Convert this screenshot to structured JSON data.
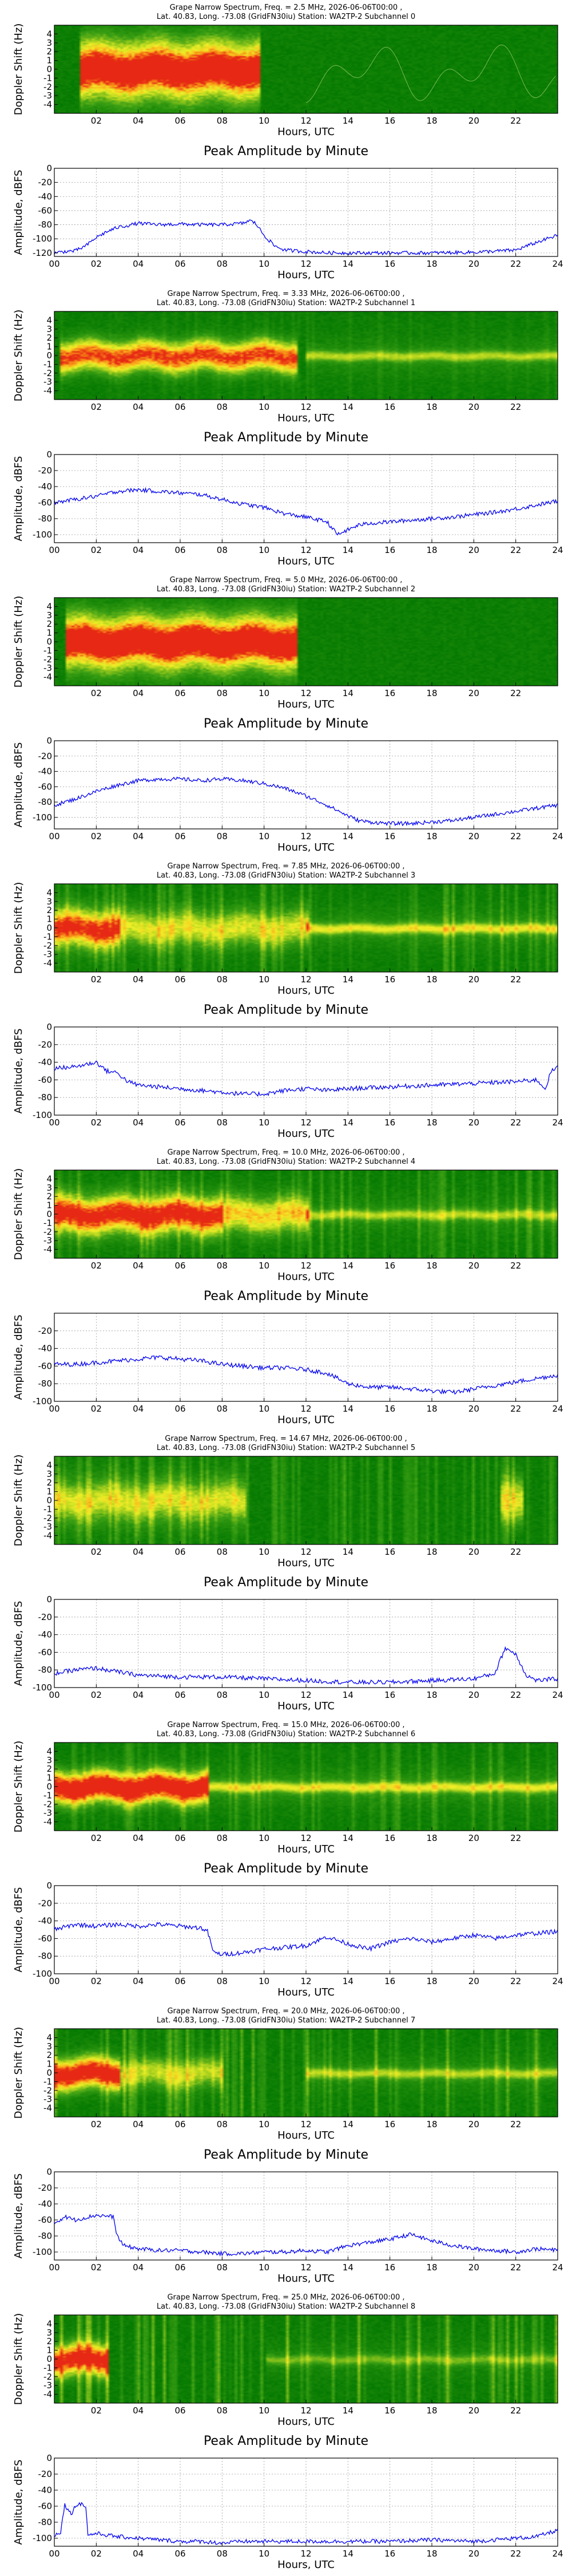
{
  "chart_data": [
    {
      "type": "heatmap",
      "title_lines": [
        "Grape Narrow Spectrum, Freq. = 2.5 MHz, 2026-06-06T00:00 ,",
        "Lat. 40.83, Long. -73.08 (GridFN30iu) Station: WA2TP-2 Subchannel 0"
      ],
      "xlabel": "Hours, UTC",
      "ylabel": "Doppler Shift (Hz)",
      "x_ticks": [
        "02",
        "04",
        "06",
        "08",
        "10",
        "12",
        "14",
        "16",
        "18",
        "20",
        "22"
      ],
      "y_ticks": [
        "4",
        "3",
        "2",
        "1",
        "0",
        "-1",
        "-2",
        "-3",
        "-4"
      ],
      "xlim": [
        0,
        24
      ],
      "ylim": [
        -5,
        5
      ]
    },
    {
      "type": "line",
      "title": "Peak Amplitude by Minute",
      "xlabel": "Hours, UTC",
      "ylabel": "Amplitude, dBFS",
      "x_ticks": [
        "00",
        "02",
        "04",
        "06",
        "08",
        "10",
        "12",
        "14",
        "16",
        "18",
        "20",
        "22",
        "24"
      ],
      "y_ticks": [
        "0",
        "-20",
        "-40",
        "-60",
        "-80",
        "-100",
        "-120"
      ],
      "xlim": [
        0,
        24
      ],
      "ylim": [
        -125,
        0
      ],
      "series": [
        {
          "x": [
            0,
            0.5,
            1,
            1.5,
            2,
            2.5,
            3,
            4,
            5,
            6,
            7,
            8,
            9,
            9.3,
            9.6,
            10,
            10.5,
            11,
            12,
            13,
            14,
            16,
            18,
            20,
            22,
            23,
            24
          ],
          "y": [
            -120,
            -118,
            -117,
            -110,
            -98,
            -90,
            -84,
            -78,
            -80,
            -79,
            -80,
            -80,
            -78,
            -74,
            -78,
            -95,
            -110,
            -116,
            -118,
            -120,
            -120,
            -120,
            -120,
            -119,
            -116,
            -105,
            -95
          ]
        }
      ]
    },
    {
      "type": "heatmap",
      "title_lines": [
        "Grape Narrow Spectrum, Freq. = 3.33 MHz, 2026-06-06T00:00 ,",
        "Lat. 40.83, Long. -73.08 (GridFN30iu) Station: WA2TP-2 Subchannel 1"
      ],
      "xlabel": "Hours, UTC",
      "ylabel": "Doppler Shift (Hz)",
      "x_ticks": [
        "02",
        "04",
        "06",
        "08",
        "10",
        "12",
        "14",
        "16",
        "18",
        "20",
        "22"
      ],
      "y_ticks": [
        "4",
        "3",
        "2",
        "1",
        "0",
        "-1",
        "-2",
        "-3",
        "-4"
      ],
      "xlim": [
        0,
        24
      ],
      "ylim": [
        -5,
        5
      ]
    },
    {
      "type": "line",
      "title": "Peak Amplitude by Minute",
      "xlabel": "Hours, UTC",
      "ylabel": "Amplitude, dBFS",
      "x_ticks": [
        "00",
        "02",
        "04",
        "06",
        "08",
        "10",
        "12",
        "14",
        "16",
        "18",
        "20",
        "22",
        "24"
      ],
      "y_ticks": [
        "0",
        "-20",
        "-40",
        "-60",
        "-80",
        "-100"
      ],
      "xlim": [
        0,
        24
      ],
      "ylim": [
        -110,
        0
      ],
      "series": [
        {
          "x": [
            0,
            1,
            2,
            3,
            4,
            5,
            6,
            7,
            8,
            9,
            10,
            11,
            12,
            13,
            13.5,
            14,
            14.5,
            15,
            16,
            17,
            18,
            19,
            20,
            21,
            22,
            23,
            24
          ],
          "y": [
            -60,
            -56,
            -52,
            -46,
            -44,
            -46,
            -48,
            -50,
            -56,
            -62,
            -66,
            -74,
            -78,
            -84,
            -100,
            -94,
            -88,
            -86,
            -84,
            -82,
            -80,
            -78,
            -75,
            -72,
            -68,
            -63,
            -58
          ]
        }
      ]
    },
    {
      "type": "heatmap",
      "title_lines": [
        "Grape Narrow Spectrum, Freq. = 5.0 MHz, 2026-06-06T00:00 ,",
        "Lat. 40.83, Long. -73.08 (GridFN30iu) Station: WA2TP-2 Subchannel 2"
      ],
      "xlabel": "Hours, UTC",
      "ylabel": "Doppler Shift (Hz)",
      "x_ticks": [
        "02",
        "04",
        "06",
        "08",
        "10",
        "12",
        "14",
        "16",
        "18",
        "20",
        "22"
      ],
      "y_ticks": [
        "4",
        "3",
        "2",
        "1",
        "0",
        "-1",
        "-2",
        "-3",
        "-4"
      ],
      "xlim": [
        0,
        24
      ],
      "ylim": [
        -5,
        5
      ]
    },
    {
      "type": "line",
      "title": "Peak Amplitude by Minute",
      "xlabel": "Hours, UTC",
      "ylabel": "Amplitude, dBFS",
      "x_ticks": [
        "00",
        "02",
        "04",
        "06",
        "08",
        "10",
        "12",
        "14",
        "16",
        "18",
        "20",
        "22",
        "24"
      ],
      "y_ticks": [
        "0",
        "-20",
        "-40",
        "-60",
        "-80",
        "-100"
      ],
      "xlim": [
        0,
        24
      ],
      "ylim": [
        -115,
        0
      ],
      "series": [
        {
          "x": [
            0,
            1,
            2,
            3,
            4,
            5,
            6,
            7,
            8,
            9,
            10,
            11,
            12,
            13,
            14,
            14.5,
            15,
            16,
            17,
            18,
            19,
            20,
            21,
            22,
            23,
            24
          ],
          "y": [
            -84,
            -76,
            -66,
            -58,
            -52,
            -50,
            -50,
            -52,
            -50,
            -52,
            -56,
            -62,
            -72,
            -84,
            -98,
            -104,
            -106,
            -108,
            -108,
            -106,
            -104,
            -100,
            -96,
            -92,
            -88,
            -84
          ]
        }
      ]
    },
    {
      "type": "heatmap",
      "title_lines": [
        "Grape Narrow Spectrum, Freq. = 7.85 MHz, 2026-06-06T00:00 ,",
        "Lat. 40.83, Long. -73.08 (GridFN30iu) Station: WA2TP-2 Subchannel 3"
      ],
      "xlabel": "Hours, UTC",
      "ylabel": "Doppler Shift (Hz)",
      "x_ticks": [
        "02",
        "04",
        "06",
        "08",
        "10",
        "12",
        "14",
        "16",
        "18",
        "20",
        "22"
      ],
      "y_ticks": [
        "4",
        "3",
        "2",
        "1",
        "0",
        "-1",
        "-2",
        "-3",
        "-4"
      ],
      "xlim": [
        0,
        24
      ],
      "ylim": [
        -5,
        5
      ]
    },
    {
      "type": "line",
      "title": "Peak Amplitude by Minute",
      "xlabel": "Hours, UTC",
      "ylabel": "Amplitude, dBFS",
      "x_ticks": [
        "00",
        "02",
        "04",
        "06",
        "08",
        "10",
        "12",
        "14",
        "16",
        "18",
        "20",
        "22",
        "24"
      ],
      "y_ticks": [
        "0",
        "-20",
        "-40",
        "-60",
        "-80",
        "-100"
      ],
      "xlim": [
        0,
        24
      ],
      "ylim": [
        -100,
        0
      ],
      "series": [
        {
          "x": [
            0,
            1,
            2,
            2.5,
            3,
            3.5,
            4,
            5,
            6,
            7,
            8,
            9,
            10,
            11,
            12,
            13,
            14,
            16,
            18,
            20,
            22,
            23,
            23.4,
            23.7,
            24
          ],
          "y": [
            -47,
            -45,
            -40,
            -50,
            -52,
            -62,
            -66,
            -68,
            -70,
            -72,
            -74,
            -76,
            -76,
            -72,
            -70,
            -72,
            -70,
            -68,
            -66,
            -64,
            -62,
            -60,
            -70,
            -50,
            -46
          ]
        }
      ]
    },
    {
      "type": "heatmap",
      "title_lines": [
        "Grape Narrow Spectrum, Freq. = 10.0 MHz, 2026-06-06T00:00 ,",
        "Lat. 40.83, Long. -73.08 (GridFN30iu) Station: WA2TP-2 Subchannel 4"
      ],
      "xlabel": "Hours, UTC",
      "ylabel": "Doppler Shift (Hz)",
      "x_ticks": [
        "02",
        "04",
        "06",
        "08",
        "10",
        "12",
        "14",
        "16",
        "18",
        "20",
        "22"
      ],
      "y_ticks": [
        "4",
        "3",
        "2",
        "1",
        "0",
        "-1",
        "-2",
        "-3",
        "-4"
      ],
      "xlim": [
        0,
        24
      ],
      "ylim": [
        -5,
        5
      ]
    },
    {
      "type": "line",
      "title": "Peak Amplitude by Minute",
      "xlabel": "Hours, UTC",
      "ylabel": "Amplitude, dBFS",
      "x_ticks": [
        "00",
        "02",
        "04",
        "06",
        "08",
        "10",
        "12",
        "14",
        "16",
        "18",
        "20",
        "22",
        "24"
      ],
      "y_ticks": [
        "-20",
        "-40",
        "-60",
        "-80",
        "-100"
      ],
      "xlim": [
        0,
        24
      ],
      "ylim": [
        -100,
        0
      ],
      "series": [
        {
          "x": [
            0,
            1,
            2,
            3,
            4,
            5,
            6,
            7,
            8,
            9,
            10,
            11,
            12,
            13,
            14,
            15,
            16,
            17,
            18,
            19,
            20,
            21,
            22,
            23,
            24
          ],
          "y": [
            -58,
            -58,
            -56,
            -54,
            -52,
            -50,
            -52,
            -54,
            -58,
            -60,
            -62,
            -62,
            -64,
            -68,
            -80,
            -84,
            -84,
            -86,
            -88,
            -90,
            -86,
            -82,
            -78,
            -74,
            -70
          ]
        }
      ]
    },
    {
      "type": "heatmap",
      "title_lines": [
        "Grape Narrow Spectrum, Freq. = 14.67 MHz, 2026-06-06T00:00 ,",
        "Lat. 40.83, Long. -73.08 (GridFN30iu) Station: WA2TP-2 Subchannel 5"
      ],
      "xlabel": "Hours, UTC",
      "ylabel": "Doppler Shift (Hz)",
      "x_ticks": [
        "02",
        "04",
        "06",
        "08",
        "10",
        "12",
        "14",
        "16",
        "18",
        "20",
        "22"
      ],
      "y_ticks": [
        "4",
        "3",
        "2",
        "1",
        "0",
        "-1",
        "-2",
        "-3",
        "-4"
      ],
      "xlim": [
        0,
        24
      ],
      "ylim": [
        -5,
        5
      ]
    },
    {
      "type": "line",
      "title": "Peak Amplitude by Minute",
      "xlabel": "Hours, UTC",
      "ylabel": "Amplitude, dBFS",
      "x_ticks": [
        "00",
        "02",
        "04",
        "06",
        "08",
        "10",
        "12",
        "14",
        "16",
        "18",
        "20",
        "22",
        "24"
      ],
      "y_ticks": [
        "0",
        "-20",
        "-40",
        "-60",
        "-80",
        "-100"
      ],
      "xlim": [
        0,
        24
      ],
      "ylim": [
        -100,
        0
      ],
      "series": [
        {
          "x": [
            0,
            1,
            2,
            3,
            4,
            6,
            8,
            10,
            12,
            14,
            16,
            18,
            20,
            21,
            21.5,
            22,
            22.5,
            23,
            24
          ],
          "y": [
            -84,
            -80,
            -78,
            -82,
            -86,
            -88,
            -88,
            -90,
            -92,
            -94,
            -94,
            -92,
            -90,
            -84,
            -55,
            -62,
            -86,
            -92,
            -90
          ]
        }
      ]
    },
    {
      "type": "heatmap",
      "title_lines": [
        "Grape Narrow Spectrum, Freq. = 15.0 MHz, 2026-06-06T00:00 ,",
        "Lat. 40.83, Long. -73.08 (GridFN30iu) Station: WA2TP-2 Subchannel 6"
      ],
      "xlabel": "Hours, UTC",
      "ylabel": "Doppler Shift (Hz)",
      "x_ticks": [
        "02",
        "04",
        "06",
        "08",
        "10",
        "12",
        "14",
        "16",
        "18",
        "20",
        "22"
      ],
      "y_ticks": [
        "4",
        "3",
        "2",
        "1",
        "0",
        "-1",
        "-2",
        "-3",
        "-4"
      ],
      "xlim": [
        0,
        24
      ],
      "ylim": [
        -5,
        5
      ]
    },
    {
      "type": "line",
      "title": "Peak Amplitude by Minute",
      "xlabel": "Hours, UTC",
      "ylabel": "Amplitude, dBFS",
      "x_ticks": [
        "00",
        "02",
        "04",
        "06",
        "08",
        "10",
        "12",
        "14",
        "16",
        "18",
        "20",
        "22",
        "24"
      ],
      "y_ticks": [
        "0",
        "-20",
        "-40",
        "-60",
        "-80",
        "-100"
      ],
      "xlim": [
        0,
        24
      ],
      "ylim": [
        -100,
        0
      ],
      "series": [
        {
          "x": [
            0,
            1,
            2,
            3,
            4,
            5,
            6,
            7,
            7.3,
            7.6,
            8,
            9,
            10,
            11,
            12,
            13,
            14,
            15,
            16,
            17,
            18,
            19,
            20,
            21,
            22,
            23,
            24
          ],
          "y": [
            -50,
            -44,
            -46,
            -44,
            -46,
            -44,
            -46,
            -48,
            -52,
            -76,
            -78,
            -76,
            -72,
            -70,
            -68,
            -58,
            -66,
            -72,
            -64,
            -60,
            -64,
            -60,
            -56,
            -60,
            -56,
            -54,
            -52
          ]
        }
      ]
    },
    {
      "type": "heatmap",
      "title_lines": [
        "Grape Narrow Spectrum, Freq. = 20.0 MHz, 2026-06-06T00:00 ,",
        "Lat. 40.83, Long. -73.08 (GridFN30iu) Station: WA2TP-2 Subchannel 7"
      ],
      "xlabel": "Hours, UTC",
      "ylabel": "Doppler Shift (Hz)",
      "x_ticks": [
        "02",
        "04",
        "06",
        "08",
        "10",
        "12",
        "14",
        "16",
        "18",
        "20",
        "22"
      ],
      "y_ticks": [
        "4",
        "3",
        "2",
        "1",
        "0",
        "-1",
        "-2",
        "-3",
        "-4"
      ],
      "xlim": [
        0,
        24
      ],
      "ylim": [
        -5,
        5
      ]
    },
    {
      "type": "line",
      "title": "Peak Amplitude by Minute",
      "xlabel": "Hours, UTC",
      "ylabel": "Amplitude, dBFS",
      "x_ticks": [
        "00",
        "02",
        "04",
        "06",
        "08",
        "10",
        "12",
        "14",
        "16",
        "18",
        "20",
        "22",
        "24"
      ],
      "y_ticks": [
        "0",
        "-20",
        "-40",
        "-60",
        "-80",
        "-100"
      ],
      "xlim": [
        0,
        24
      ],
      "ylim": [
        -110,
        0
      ],
      "series": [
        {
          "x": [
            0,
            0.5,
            1,
            2,
            2.8,
            3,
            3.3,
            4,
            5,
            6,
            7,
            8,
            9,
            10,
            11,
            12,
            13,
            14,
            15,
            16,
            17,
            18,
            19,
            20,
            21,
            22,
            23,
            24
          ],
          "y": [
            -64,
            -56,
            -60,
            -54,
            -56,
            -80,
            -92,
            -96,
            -98,
            -98,
            -100,
            -102,
            -102,
            -100,
            -100,
            -98,
            -100,
            -92,
            -88,
            -84,
            -78,
            -86,
            -92,
            -96,
            -98,
            -100,
            -96,
            -98
          ]
        }
      ]
    },
    {
      "type": "heatmap",
      "title_lines": [
        "Grape Narrow Spectrum, Freq. = 25.0 MHz, 2026-06-06T00:00 ,",
        "Lat. 40.83, Long. -73.08 (GridFN30iu) Station: WA2TP-2 Subchannel 8"
      ],
      "xlabel": "Hours, UTC",
      "ylabel": "Doppler Shift (Hz)",
      "x_ticks": [
        "02",
        "04",
        "06",
        "08",
        "10",
        "12",
        "14",
        "16",
        "18",
        "20",
        "22"
      ],
      "y_ticks": [
        "4",
        "3",
        "2",
        "1",
        "0",
        "-1",
        "-2",
        "-3",
        "-4"
      ],
      "xlim": [
        0,
        24
      ],
      "ylim": [
        -5,
        5
      ]
    },
    {
      "type": "line",
      "title": "Peak Amplitude by Minute",
      "xlabel": "Hours, UTC",
      "ylabel": "Amplitude, dBFS",
      "x_ticks": [
        "00",
        "02",
        "04",
        "06",
        "08",
        "10",
        "12",
        "14",
        "16",
        "18",
        "20",
        "22",
        "24"
      ],
      "y_ticks": [
        "0",
        "-20",
        "-40",
        "-60",
        "-80",
        "-100"
      ],
      "xlim": [
        0,
        24
      ],
      "ylim": [
        -110,
        0
      ],
      "series": [
        {
          "x": [
            0,
            0.3,
            0.5,
            0.8,
            1,
            1.2,
            1.5,
            1.6,
            2,
            2.5,
            3,
            4,
            5,
            6,
            7,
            8,
            9,
            10,
            12,
            14,
            16,
            18,
            20,
            22,
            23,
            24
          ],
          "y": [
            -96,
            -92,
            -58,
            -70,
            -60,
            -56,
            -60,
            -96,
            -94,
            -96,
            -98,
            -100,
            -102,
            -104,
            -104,
            -106,
            -104,
            -104,
            -104,
            -104,
            -104,
            -102,
            -104,
            -100,
            -98,
            -90
          ]
        }
      ]
    }
  ]
}
